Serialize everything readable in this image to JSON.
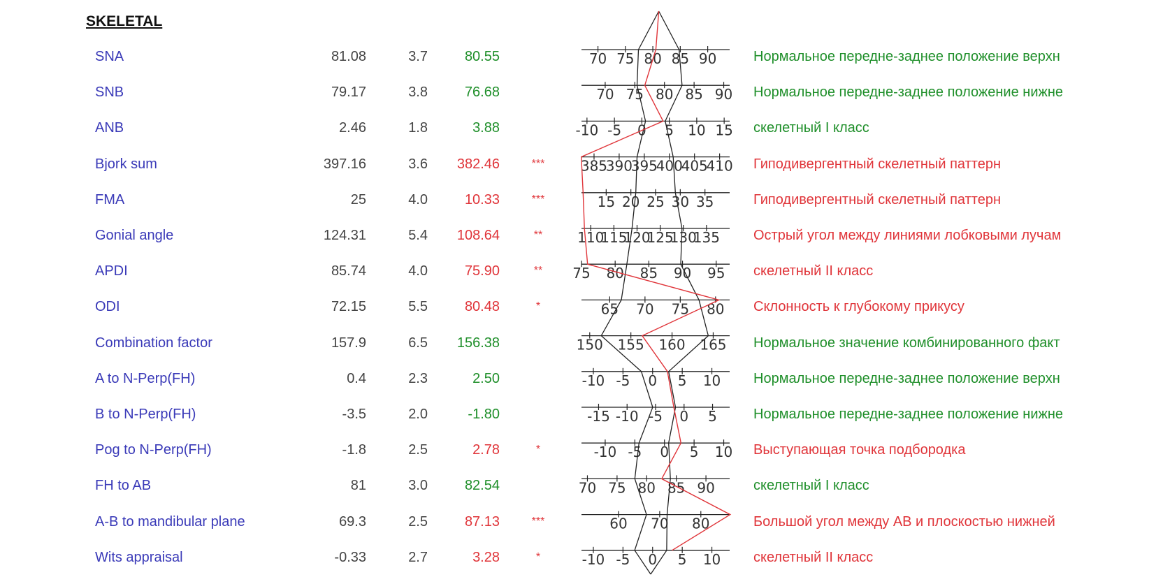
{
  "section_title": "SKELETAL",
  "colors": {
    "name": "#3a3ab8",
    "normal": "#1f8f2a",
    "abnormal": "#e0353a",
    "axis": "#222222"
  },
  "rows": [
    {
      "name": "SNA",
      "norm": "81.08",
      "sd": "3.7",
      "value": "80.55",
      "sig": "",
      "status": "normal",
      "note": "Нормальное передне-заднее положение верхн",
      "scale": {
        "min": 67,
        "max": 94,
        "ticks": [
          "70",
          "75",
          "80",
          "85",
          "90"
        ]
      }
    },
    {
      "name": "SNB",
      "norm": "79.17",
      "sd": "3.8",
      "value": "76.68",
      "sig": "",
      "status": "normal",
      "note": "Нормальное передне-заднее положение нижне",
      "scale": {
        "min": 66,
        "max": 91,
        "ticks": [
          "70",
          "75",
          "80",
          "85",
          "90"
        ]
      }
    },
    {
      "name": "ANB",
      "norm": "2.46",
      "sd": "1.8",
      "value": "3.88",
      "sig": "",
      "status": "normal",
      "note": "скелетный I класс",
      "scale": {
        "min": -11,
        "max": 16,
        "ticks": [
          "-10",
          "-5",
          "0",
          "5",
          "10",
          "15"
        ]
      }
    },
    {
      "name": "Bjork sum",
      "norm": "397.16",
      "sd": "3.6",
      "value": "382.46",
      "sig": "***",
      "status": "abnormal",
      "note": "Гиподивергентный скелетный паттерн",
      "scale": {
        "min": 382.5,
        "max": 412,
        "ticks": [
          "385",
          "390",
          "395",
          "400",
          "405",
          "410"
        ]
      }
    },
    {
      "name": "FMA",
      "norm": "25",
      "sd": "4.0",
      "value": "10.33",
      "sig": "***",
      "status": "abnormal",
      "note": "Гиподивергентный скелетный паттерн",
      "scale": {
        "min": 10,
        "max": 40,
        "ticks": [
          "15",
          "20",
          "25",
          "30",
          "35"
        ]
      }
    },
    {
      "name": "Gonial angle",
      "norm": "124.31",
      "sd": "5.4",
      "value": "108.64",
      "sig": "**",
      "status": "abnormal",
      "note": "Острый угол между линиями лобковыми лучам",
      "scale": {
        "min": 108,
        "max": 140,
        "ticks": [
          "110",
          "115",
          "120",
          "125",
          "130",
          "135"
        ]
      }
    },
    {
      "name": "APDI",
      "norm": "85.74",
      "sd": "4.0",
      "value": "75.90",
      "sig": "**",
      "status": "abnormal",
      "note": "скелетный II класс",
      "scale": {
        "min": 75,
        "max": 97,
        "ticks": [
          "75",
          "80",
          "85",
          "90",
          "95"
        ]
      }
    },
    {
      "name": "ODI",
      "norm": "72.15",
      "sd": "5.5",
      "value": "80.48",
      "sig": "*",
      "status": "abnormal",
      "note": "Склонность к глубокому прикусу",
      "scale": {
        "min": 61,
        "max": 82,
        "ticks": [
          "65",
          "70",
          "75",
          "80"
        ]
      }
    },
    {
      "name": "Combination factor",
      "norm": "157.9",
      "sd": "6.5",
      "value": "156.38",
      "sig": "",
      "status": "normal",
      "note": "Нормальное значение комбинированного факт",
      "scale": {
        "min": 149,
        "max": 167,
        "ticks": [
          "150",
          "155",
          "160",
          "165"
        ]
      }
    },
    {
      "name": "A to N-Perp(FH)",
      "norm": "0.4",
      "sd": "2.3",
      "value": "2.50",
      "sig": "",
      "status": "normal",
      "note": "Нормальное передне-заднее положение верхн",
      "scale": {
        "min": -12,
        "max": 13,
        "ticks": [
          "-10",
          "-5",
          "0",
          "5",
          "10"
        ]
      }
    },
    {
      "name": "B to N-Perp(FH)",
      "norm": "-3.5",
      "sd": "2.0",
      "value": "-1.80",
      "sig": "",
      "status": "normal",
      "note": "Нормальное передне-заднее положение нижне",
      "scale": {
        "min": -18,
        "max": 8,
        "ticks": [
          "-15",
          "-10",
          "-5",
          "0",
          "5"
        ]
      }
    },
    {
      "name": "Pog to N-Perp(FH)",
      "norm": "-1.8",
      "sd": "2.5",
      "value": "2.78",
      "sig": "*",
      "status": "abnormal",
      "note": "Выступающая точка подбородка",
      "scale": {
        "min": -14,
        "max": 11,
        "ticks": [
          "-10",
          "-5",
          "0",
          "5",
          "10"
        ]
      }
    },
    {
      "name": "FH to AB",
      "norm": "81",
      "sd": "3.0",
      "value": "82.54",
      "sig": "",
      "status": "normal",
      "note": "скелетный I класс",
      "scale": {
        "min": 69,
        "max": 94,
        "ticks": [
          "70",
          "75",
          "80",
          "85",
          "90"
        ]
      }
    },
    {
      "name": "A-B to mandibular plane",
      "norm": "69.3",
      "sd": "2.5",
      "value": "87.13",
      "sig": "***",
      "status": "abnormal",
      "note": "Большой угол между AB и плоскостью нижней",
      "scale": {
        "min": 51,
        "max": 87,
        "ticks": [
          "60",
          "70",
          "80"
        ]
      }
    },
    {
      "name": "Wits appraisal",
      "norm": "-0.33",
      "sd": "2.7",
      "value": "3.28",
      "sig": "*",
      "status": "abnormal",
      "note": "скелетный II класс",
      "scale": {
        "min": -12,
        "max": 13,
        "ticks": [
          "-10",
          "-5",
          "0",
          "5",
          "10"
        ]
      }
    }
  ]
}
